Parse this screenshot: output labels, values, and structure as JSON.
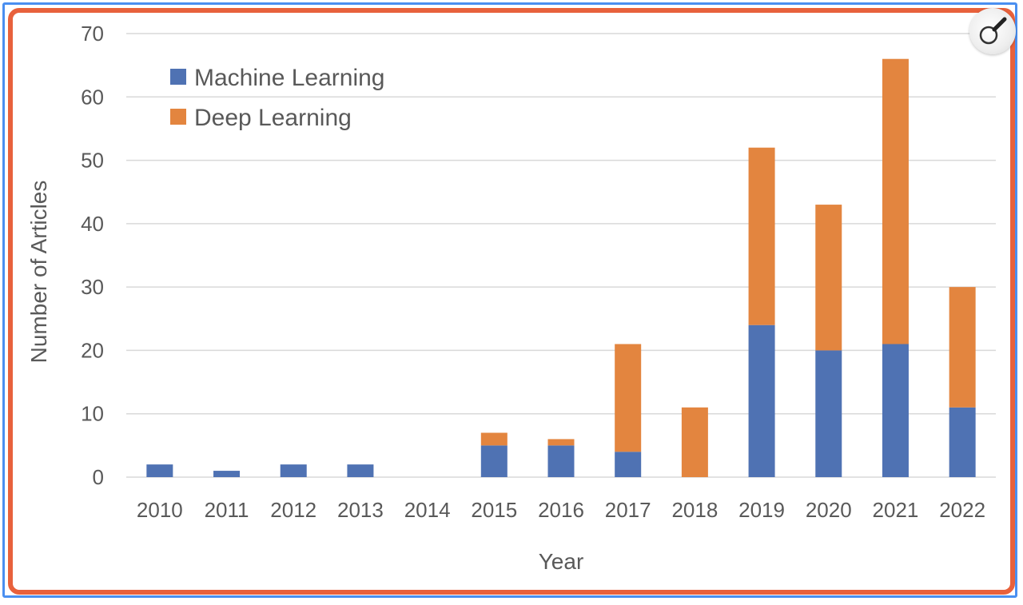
{
  "chart_data": {
    "type": "bar",
    "stacked": true,
    "categories": [
      "2010",
      "2011",
      "2012",
      "2013",
      "2014",
      "2015",
      "2016",
      "2017",
      "2018",
      "2019",
      "2020",
      "2021",
      "2022"
    ],
    "series": [
      {
        "name": "Machine Learning",
        "color": "#4f72b3",
        "values": [
          2,
          1,
          2,
          2,
          0,
          5,
          5,
          4,
          0,
          24,
          20,
          21,
          11
        ]
      },
      {
        "name": "Deep Learning",
        "color": "#e3853f",
        "values": [
          0,
          0,
          0,
          0,
          0,
          2,
          1,
          17,
          11,
          28,
          23,
          45,
          19
        ]
      }
    ],
    "xlabel": "Year",
    "ylabel": "Number of Articles",
    "ylim": [
      0,
      70
    ],
    "yticks": [
      0,
      10,
      20,
      30,
      40,
      50,
      60,
      70
    ],
    "grid": true,
    "legend": "top-left"
  },
  "colors": {
    "outer_border": "#4a8ff0",
    "inner_border": "#e8613c",
    "text": "#595959",
    "grid": "#d9d9d9"
  },
  "controls": {
    "zoom_icon": "magnifier-icon"
  }
}
